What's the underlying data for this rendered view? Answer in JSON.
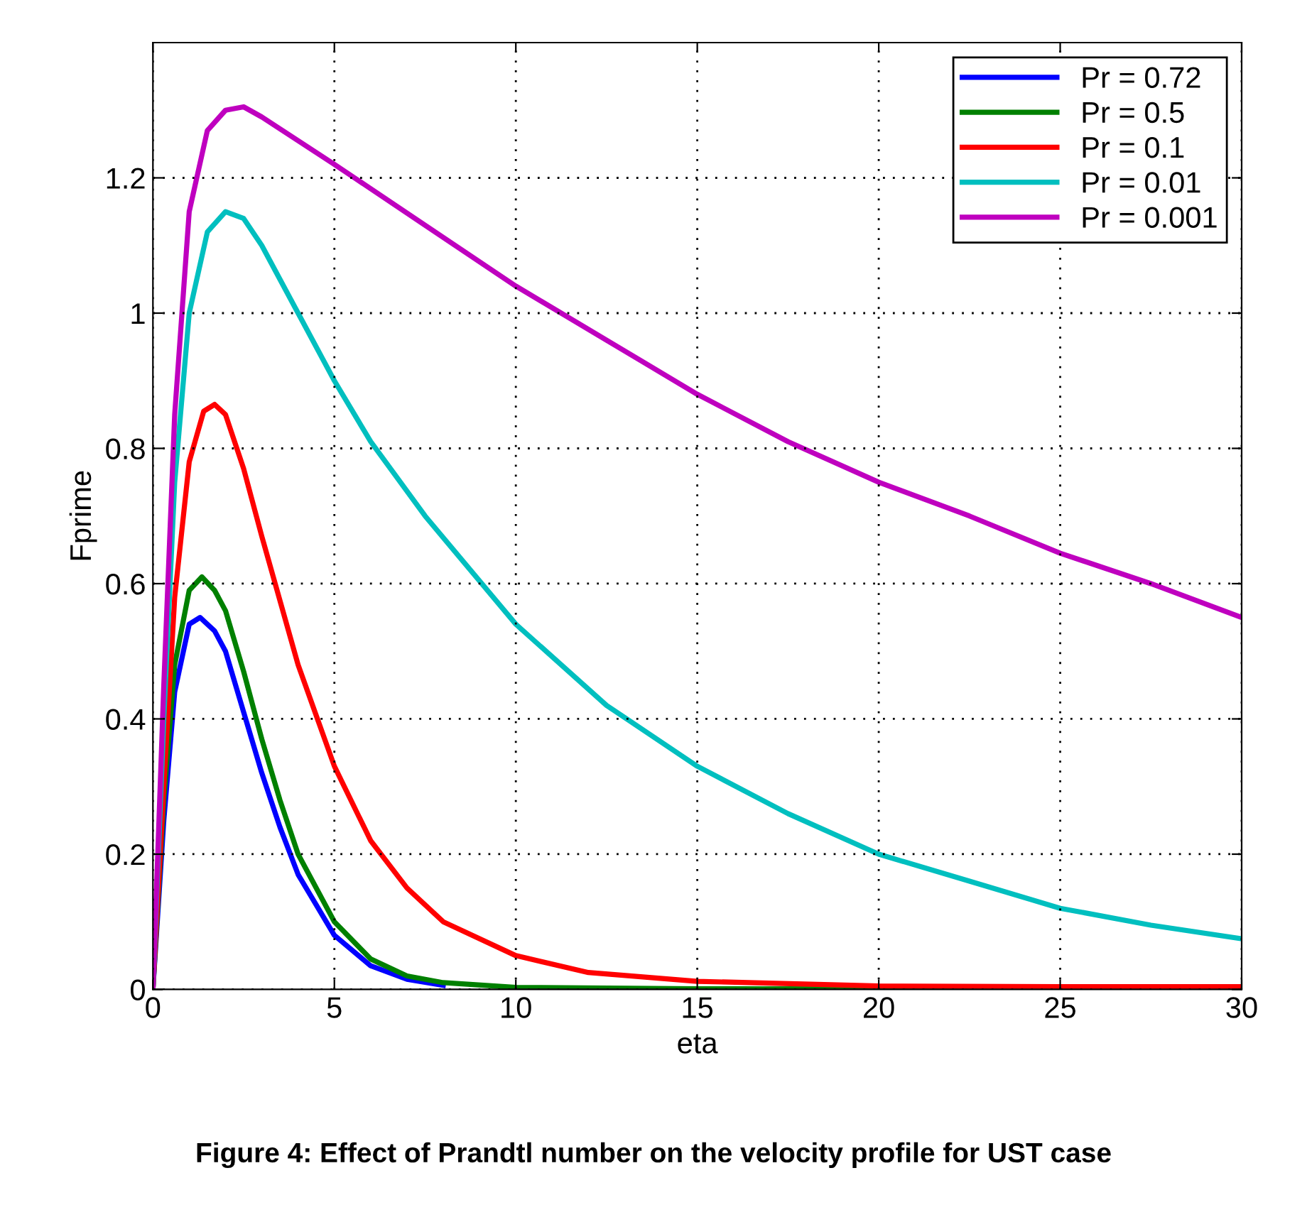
{
  "chart_data": {
    "type": "line",
    "xlabel": "eta",
    "ylabel": "Fprime",
    "annotations": [
      "Figure 4: Effect of Prandtl number on the velocity profile for UST case"
    ],
    "xlim": [
      0,
      30
    ],
    "xticks": [
      0,
      5,
      10,
      15,
      20,
      25,
      30
    ],
    "ylim": [
      0,
      1.4
    ],
    "yticks": [
      0,
      0.2,
      0.4,
      0.6,
      0.8,
      1,
      1.2
    ],
    "grid": true,
    "legend": "top right",
    "line_style": "solid",
    "marker": "none",
    "series": [
      {
        "name": "Pr = 0.72",
        "color": "#0000ff",
        "x": [
          0,
          0.3,
          0.6,
          1,
          1.3,
          1.7,
          2,
          2.5,
          3,
          3.5,
          4,
          5,
          6,
          7,
          8,
          10,
          15,
          30
        ],
        "values": [
          0,
          0.25,
          0.44,
          0.54,
          0.55,
          0.53,
          0.5,
          0.41,
          0.32,
          0.24,
          0.17,
          0.08,
          0.035,
          0.015,
          0.006,
          null,
          0,
          0
        ]
      },
      {
        "name": "Pr = 0.5",
        "color": "#008000",
        "x": [
          0,
          0.3,
          0.6,
          1,
          1.35,
          1.7,
          2,
          2.5,
          3,
          3.5,
          4,
          5,
          6,
          7,
          8,
          10,
          15,
          30
        ],
        "values": [
          0,
          0.28,
          0.48,
          0.59,
          0.61,
          0.59,
          0.56,
          0.47,
          0.37,
          0.28,
          0.2,
          0.1,
          0.045,
          0.02,
          0.01,
          0.003,
          0.001,
          0
        ]
      },
      {
        "name": "Pr = 0.1",
        "color": "#ff0000",
        "x": [
          0,
          0.3,
          0.6,
          1,
          1.4,
          1.7,
          2,
          2.5,
          3,
          4,
          5,
          6,
          7,
          8,
          10,
          12,
          15,
          20,
          25,
          30
        ],
        "values": [
          0,
          0.3,
          0.58,
          0.78,
          0.855,
          0.865,
          0.85,
          0.77,
          0.67,
          0.48,
          0.33,
          0.22,
          0.15,
          0.1,
          0.05,
          0.025,
          0.012,
          0.005,
          0.004,
          0.004
        ]
      },
      {
        "name": "Pr = 0.01",
        "color": "#00bfbf",
        "x": [
          0,
          0.3,
          0.6,
          1,
          1.5,
          2,
          2.5,
          3,
          4,
          5,
          6,
          7.5,
          10,
          12.5,
          15,
          17.5,
          20,
          22.5,
          25,
          27.5,
          30
        ],
        "values": [
          0,
          0.4,
          0.75,
          1.0,
          1.12,
          1.15,
          1.14,
          1.1,
          1.0,
          0.9,
          0.81,
          0.7,
          0.54,
          0.42,
          0.33,
          0.26,
          0.2,
          0.16,
          0.12,
          0.095,
          0.075
        ]
      },
      {
        "name": "Pr = 0.001",
        "color": "#bf00bf",
        "x": [
          0,
          0.3,
          0.6,
          1,
          1.5,
          2,
          2.5,
          3,
          5,
          7.5,
          10,
          12.5,
          15,
          17.5,
          20,
          22.5,
          25,
          27.5,
          30
        ],
        "values": [
          0,
          0.45,
          0.85,
          1.15,
          1.27,
          1.3,
          1.305,
          1.29,
          1.22,
          1.13,
          1.04,
          0.96,
          0.88,
          0.81,
          0.75,
          0.7,
          0.645,
          0.6,
          0.55
        ]
      }
    ]
  }
}
